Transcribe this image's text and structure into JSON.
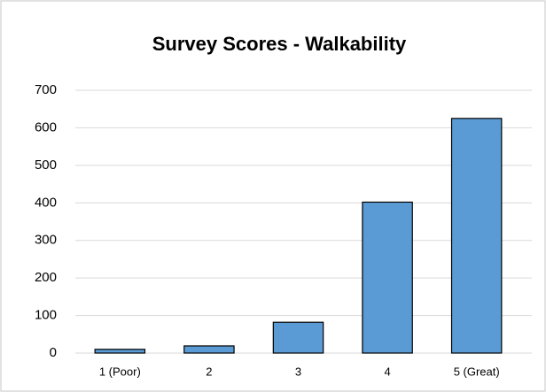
{
  "chart_data": {
    "type": "bar",
    "title": "Survey Scores - Walkability",
    "categories": [
      "1 (Poor)",
      "2",
      "3",
      "4",
      "5 (Great)"
    ],
    "values": [
      10,
      19,
      82,
      402,
      625
    ],
    "color": "#5b9bd5",
    "ylim": [
      0,
      700
    ],
    "yticks": [
      0,
      100,
      200,
      300,
      400,
      500,
      600,
      700
    ],
    "grid": true
  }
}
